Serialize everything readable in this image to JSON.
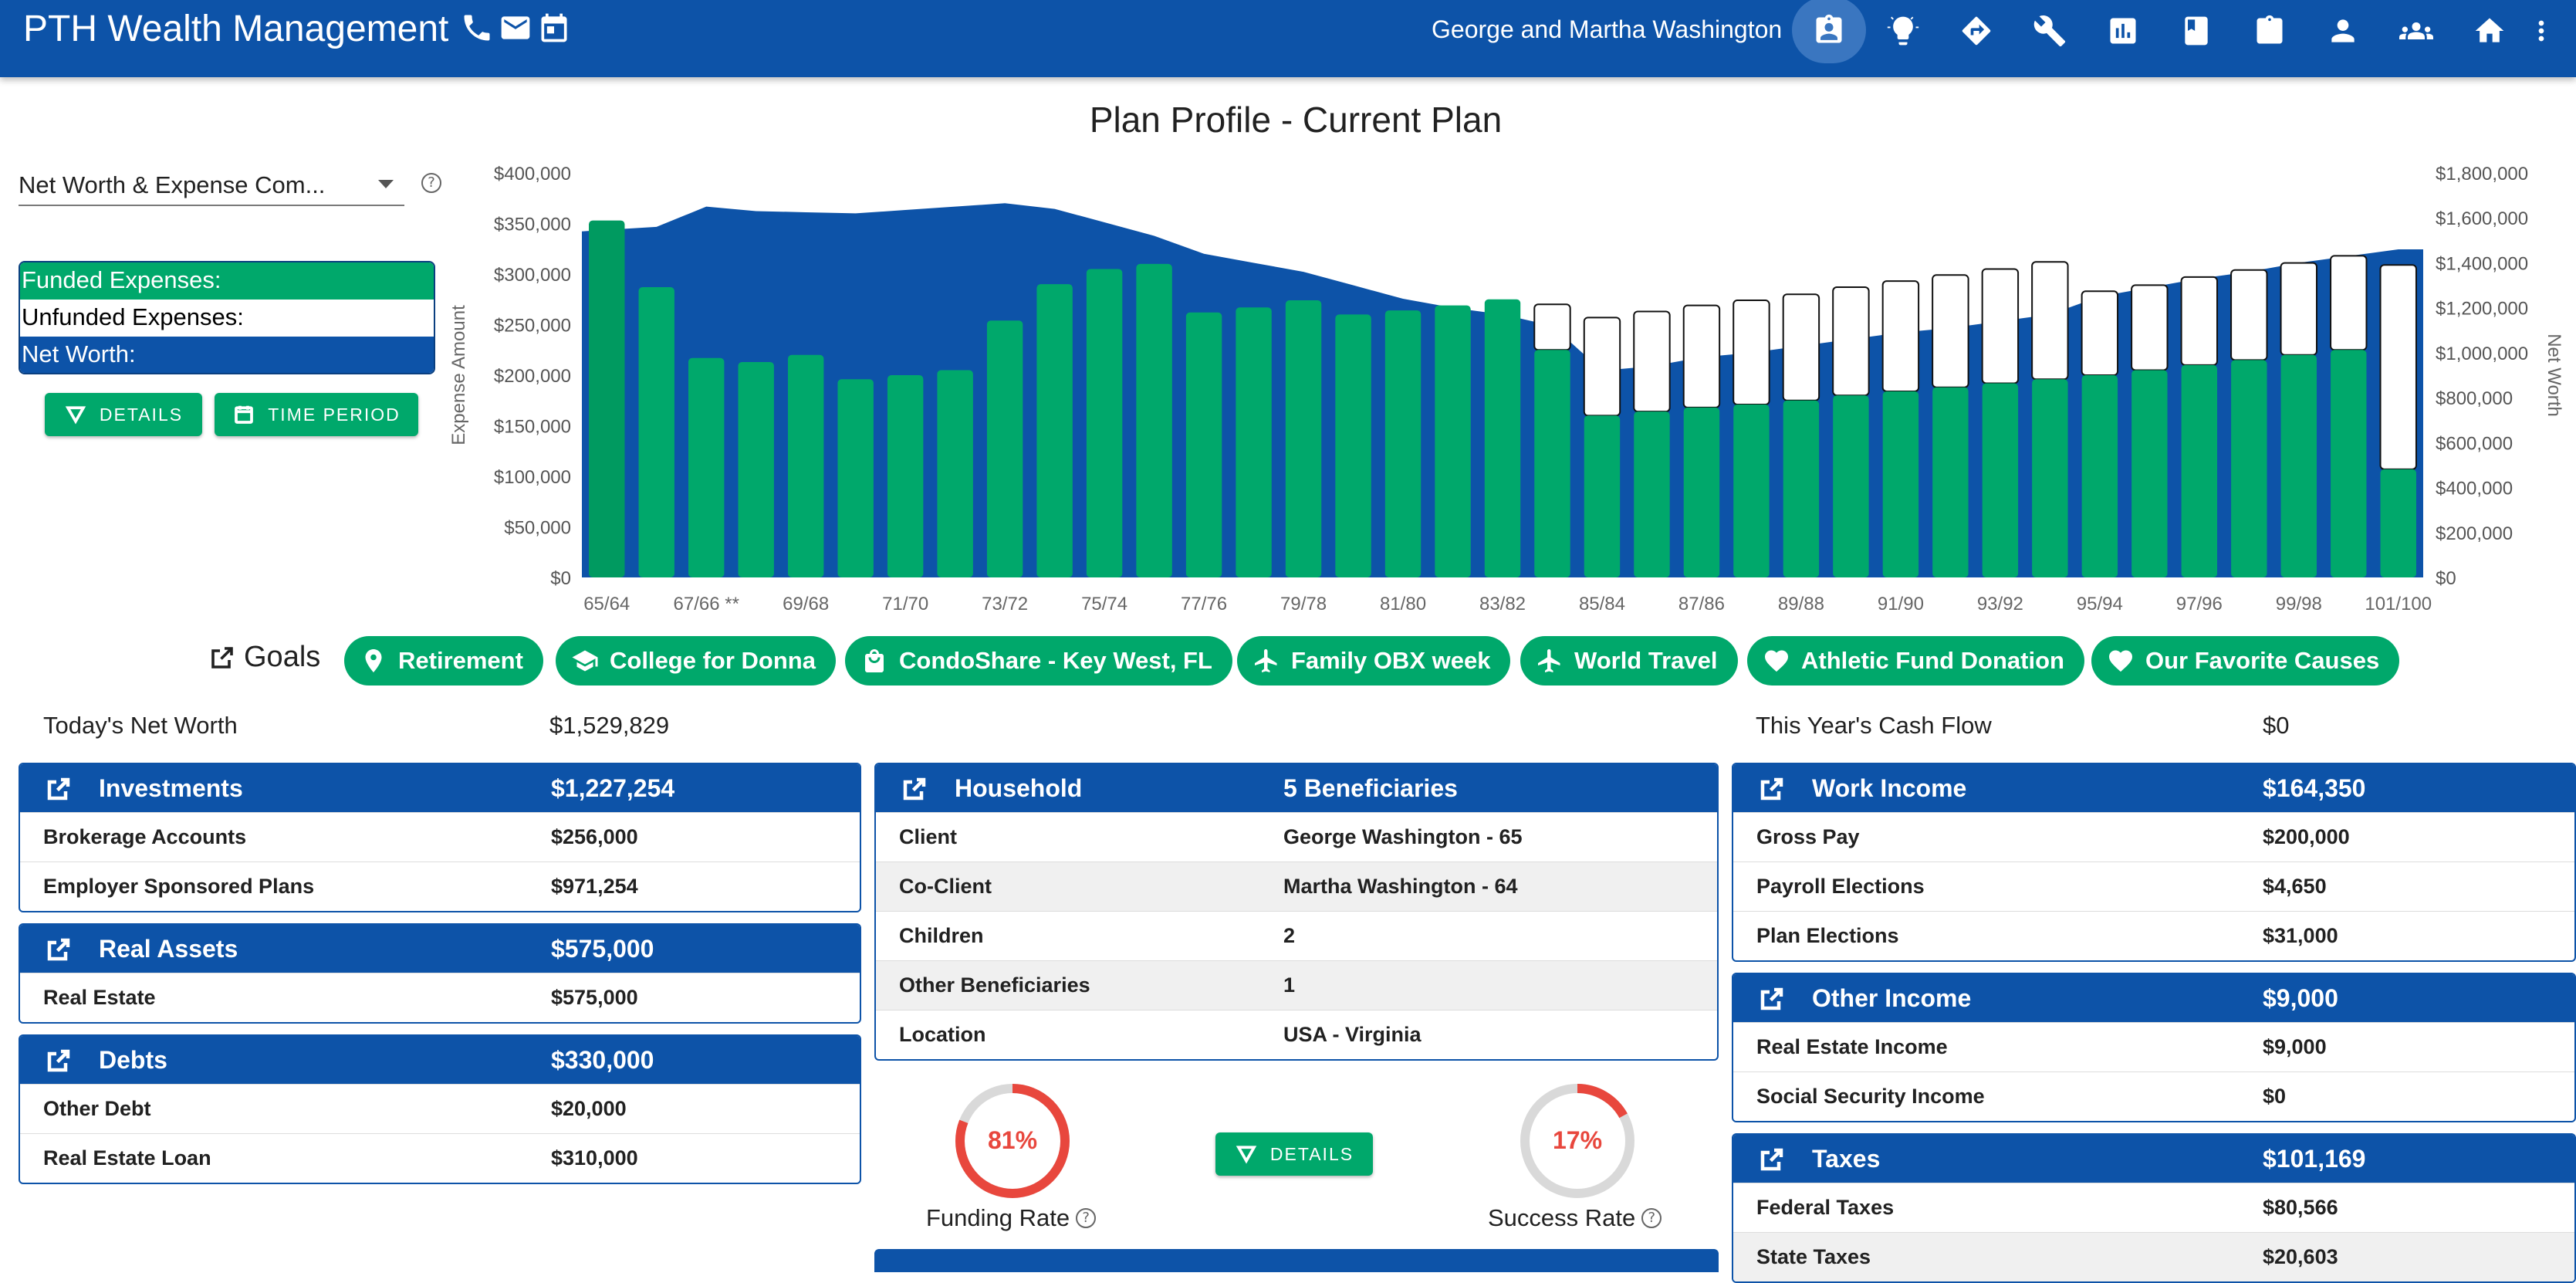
{
  "app": {
    "brand": "PTH Wealth Management",
    "client_name": "George and Martha Washington",
    "brand_icons": [
      "phone-icon",
      "email-icon",
      "calendar-icon"
    ],
    "nav_icons": [
      "contact-card-icon",
      "lightbulb-icon",
      "directions-icon",
      "wrench-icon",
      "bar-chart-icon",
      "bookmark-icon",
      "clipboard-icon",
      "person-icon",
      "group-icon",
      "home-icon"
    ]
  },
  "page": {
    "title": "Plan Profile - Current Plan",
    "chart_select": "Net Worth & Expense Com...",
    "legend": {
      "funded": "Funded Expenses:",
      "unfunded": "Unfunded Expenses:",
      "net_worth": "Net Worth:"
    },
    "details_label": "DETAILS",
    "time_period_label": "TIME PERIOD"
  },
  "colors": {
    "primary": "#0d53a8",
    "funded": "#00a86b",
    "gauge_red": "#e8473d"
  },
  "chart_data": {
    "type": "bar",
    "ylabel": "Expense Amount",
    "y2label": "Net Worth",
    "ylim": [
      0,
      400000
    ],
    "y2lim": [
      0,
      1800000
    ],
    "y_ticks": [
      "$0",
      "$50,000",
      "$100,000",
      "$150,000",
      "$200,000",
      "$250,000",
      "$300,000",
      "$350,000",
      "$400,000"
    ],
    "y2_ticks": [
      "$0",
      "$200,000",
      "$400,000",
      "$600,000",
      "$800,000",
      "$1,000,000",
      "$1,200,000",
      "$1,400,000",
      "$1,600,000",
      "$1,800,000"
    ],
    "x_tick_labels": [
      "65/64",
      "67/66 **",
      "69/68",
      "71/70",
      "73/72",
      "75/74",
      "77/76",
      "79/78",
      "81/80",
      "83/82",
      "85/84",
      "87/86",
      "89/88",
      "91/90",
      "93/92",
      "95/94",
      "97/96",
      "99/98",
      "101/100"
    ],
    "categories": [
      "65/64",
      "66/65",
      "67/66",
      "68/67",
      "69/68",
      "70/69",
      "71/70",
      "72/71",
      "73/72",
      "74/73",
      "75/74",
      "76/75",
      "77/76",
      "78/77",
      "79/78",
      "80/79",
      "81/80",
      "82/81",
      "83/82",
      "84/83",
      "85/84",
      "86/85",
      "87/86",
      "88/87",
      "89/88",
      "90/89",
      "91/90",
      "92/91",
      "93/92",
      "94/93",
      "95/94",
      "96/95",
      "97/96",
      "98/97",
      "99/98",
      "100/99",
      "101/100"
    ],
    "series": [
      {
        "name": "Funded Expenses:",
        "values": [
          353000,
          287000,
          217000,
          213000,
          220000,
          196000,
          200000,
          205000,
          254000,
          290000,
          305000,
          310000,
          262000,
          267000,
          274000,
          260000,
          264000,
          269000,
          275000,
          225000,
          160000,
          164000,
          168000,
          171000,
          175000,
          180000,
          184000,
          188000,
          192000,
          196000,
          200000,
          205000,
          210000,
          215000,
          220000,
          225000,
          107000
        ]
      },
      {
        "name": "Unfunded Expenses:",
        "values": [
          0,
          0,
          0,
          0,
          0,
          0,
          0,
          0,
          0,
          0,
          0,
          0,
          0,
          0,
          0,
          0,
          0,
          0,
          0,
          45000,
          97000,
          99000,
          101000,
          103000,
          105000,
          107000,
          109000,
          111000,
          113000,
          116000,
          83000,
          84000,
          87000,
          89000,
          91000,
          93000,
          202000
        ]
      },
      {
        "name": "Net Worth:",
        "values": [
          1540000,
          1560000,
          1650000,
          1630000,
          1625000,
          1620000,
          1635000,
          1650000,
          1665000,
          1640000,
          1580000,
          1520000,
          1440000,
          1400000,
          1360000,
          1300000,
          1240000,
          1200000,
          1170000,
          1120000,
          920000,
          940000,
          980000,
          1000000,
          1030000,
          1060000,
          1090000,
          1110000,
          1140000,
          1170000,
          1250000,
          1290000,
          1330000,
          1360000,
          1400000,
          1430000,
          1460000
        ]
      }
    ]
  },
  "goals": {
    "label": "Goals",
    "items": [
      {
        "name": "Retirement",
        "icon": "pin-icon"
      },
      {
        "name": "College for Donna",
        "icon": "graduation-cap-icon"
      },
      {
        "name": "CondoShare - Key West, FL",
        "icon": "shopping-bag-icon"
      },
      {
        "name": "Family OBX week",
        "icon": "airplane-icon"
      },
      {
        "name": "World Travel",
        "icon": "airplane-icon"
      },
      {
        "name": "Athletic Fund Donation",
        "icon": "heart-icon"
      },
      {
        "name": "Our Favorite Causes",
        "icon": "heart-icon"
      }
    ]
  },
  "summary": {
    "net_worth_label": "Today's Net Worth",
    "net_worth_value": "$1,529,829",
    "cash_flow_label": "This Year's Cash Flow",
    "cash_flow_value": "$0"
  },
  "investments": {
    "title": "Investments",
    "total": "$1,227,254",
    "rows": [
      [
        "Brokerage Accounts",
        "$256,000"
      ],
      [
        "Employer Sponsored Plans",
        "$971,254"
      ]
    ]
  },
  "real_assets": {
    "title": "Real Assets",
    "total": "$575,000",
    "rows": [
      [
        "Real Estate",
        "$575,000"
      ]
    ]
  },
  "debts": {
    "title": "Debts",
    "total": "$330,000",
    "rows": [
      [
        "Other Debt",
        "$20,000"
      ],
      [
        "Real Estate Loan",
        "$310,000"
      ]
    ]
  },
  "household": {
    "title": "Household",
    "total": "5 Beneficiaries",
    "rows": [
      [
        "Client",
        "George Washington - 65"
      ],
      [
        "Co-Client",
        "Martha Washington - 64"
      ],
      [
        "Children",
        "2"
      ],
      [
        "Other Beneficiaries",
        "1"
      ],
      [
        "Location",
        "USA - Virginia"
      ]
    ]
  },
  "work_income": {
    "title": "Work Income",
    "total": "$164,350",
    "rows": [
      [
        "Gross Pay",
        "$200,000"
      ],
      [
        "Payroll Elections",
        "$4,650"
      ],
      [
        "Plan Elections",
        "$31,000"
      ]
    ]
  },
  "other_income": {
    "title": "Other Income",
    "total": "$9,000",
    "rows": [
      [
        "Real Estate Income",
        "$9,000"
      ],
      [
        "Social Security Income",
        "$0"
      ]
    ]
  },
  "taxes": {
    "title": "Taxes",
    "total": "$101,169",
    "rows": [
      [
        "Federal Taxes",
        "$80,566"
      ],
      [
        "State Taxes",
        "$20,603"
      ]
    ]
  },
  "gauges": {
    "funding": {
      "value": 81,
      "text": "81%",
      "label": "Funding Rate"
    },
    "success": {
      "value": 17,
      "text": "17%",
      "label": "Success Rate"
    },
    "details_label": "DETAILS"
  }
}
